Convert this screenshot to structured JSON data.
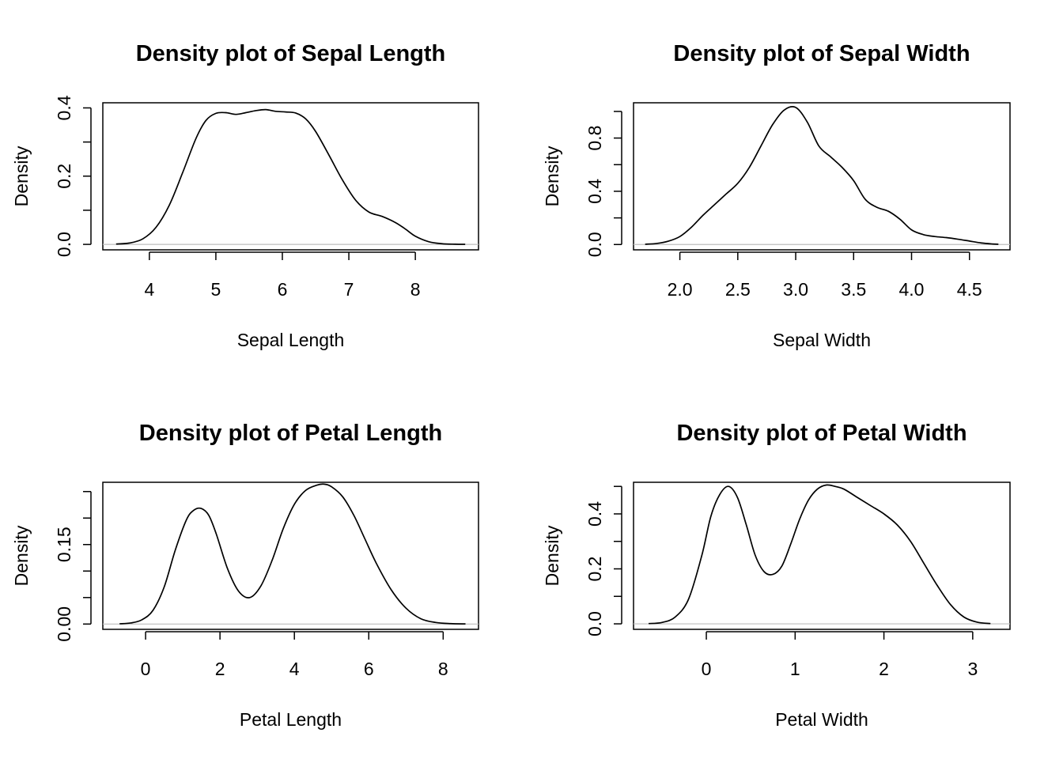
{
  "chart_data": [
    {
      "type": "line",
      "title": "Density plot of Sepal Length",
      "xlabel": "Sepal Length",
      "ylabel": "Density",
      "xlim": [
        3.3,
        8.95
      ],
      "ylim": [
        -0.016,
        0.415
      ],
      "x_ticks": [
        4,
        5,
        6,
        7,
        8
      ],
      "x_tick_labels": [
        "4",
        "5",
        "6",
        "7",
        "8"
      ],
      "y_ticks": [
        0.0,
        0.1,
        0.2,
        0.3,
        0.4
      ],
      "y_tick_labels": [
        "0.0",
        "",
        "0.2",
        "",
        "0.4"
      ],
      "zero_line": true,
      "series": [
        {
          "x": [
            3.5,
            3.7,
            3.9,
            4.1,
            4.3,
            4.5,
            4.7,
            4.85,
            5.0,
            5.15,
            5.3,
            5.45,
            5.6,
            5.75,
            5.9,
            6.05,
            6.2,
            6.35,
            6.5,
            6.7,
            6.9,
            7.1,
            7.3,
            7.5,
            7.7,
            7.85,
            8.0,
            8.2,
            8.4,
            8.6,
            8.75
          ],
          "y": [
            0.001,
            0.004,
            0.016,
            0.05,
            0.115,
            0.21,
            0.31,
            0.363,
            0.384,
            0.386,
            0.381,
            0.386,
            0.392,
            0.395,
            0.39,
            0.388,
            0.385,
            0.368,
            0.331,
            0.262,
            0.19,
            0.13,
            0.095,
            0.082,
            0.064,
            0.045,
            0.024,
            0.008,
            0.002,
            0.0005,
            0.0002
          ]
        }
      ]
    },
    {
      "type": "line",
      "title": "Density plot of Sepal Width",
      "xlabel": "Sepal Width",
      "ylabel": "Density",
      "xlim": [
        1.6,
        4.85
      ],
      "ylim": [
        -0.04,
        1.065
      ],
      "x_ticks": [
        2.0,
        2.5,
        3.0,
        3.5,
        4.0,
        4.5
      ],
      "x_tick_labels": [
        "2.0",
        "2.5",
        "3.0",
        "3.5",
        "4.0",
        "4.5"
      ],
      "y_ticks": [
        0.0,
        0.2,
        0.4,
        0.6,
        0.8,
        1.0
      ],
      "y_tick_labels": [
        "0.0",
        "",
        "0.4",
        "",
        "0.8",
        ""
      ],
      "zero_line": true,
      "series": [
        {
          "x": [
            1.7,
            1.8,
            1.9,
            2.0,
            2.1,
            2.2,
            2.3,
            2.4,
            2.5,
            2.6,
            2.7,
            2.8,
            2.9,
            3.0,
            3.1,
            3.2,
            3.3,
            3.4,
            3.5,
            3.6,
            3.7,
            3.8,
            3.9,
            4.0,
            4.1,
            4.2,
            4.3,
            4.4,
            4.5,
            4.6,
            4.7,
            4.75
          ],
          "y": [
            0.002,
            0.008,
            0.025,
            0.06,
            0.13,
            0.22,
            0.3,
            0.38,
            0.46,
            0.58,
            0.74,
            0.9,
            1.01,
            1.03,
            0.92,
            0.74,
            0.66,
            0.58,
            0.48,
            0.34,
            0.28,
            0.25,
            0.19,
            0.11,
            0.075,
            0.06,
            0.052,
            0.04,
            0.026,
            0.012,
            0.004,
            0.002
          ]
        }
      ]
    },
    {
      "type": "line",
      "title": "Density plot of Petal Length",
      "xlabel": "Petal Length",
      "ylabel": "Density",
      "xlim": [
        -1.15,
        8.95
      ],
      "ylim": [
        -0.01,
        0.2675
      ],
      "x_ticks": [
        0,
        2,
        4,
        6,
        8
      ],
      "x_tick_labels": [
        "0",
        "2",
        "4",
        "6",
        "8"
      ],
      "y_ticks": [
        0.0,
        0.05,
        0.1,
        0.15,
        0.2,
        0.25
      ],
      "y_tick_labels": [
        "0.00",
        "",
        "",
        "0.15",
        "",
        ""
      ],
      "zero_line": true,
      "series": [
        {
          "x": [
            -0.7,
            -0.4,
            -0.1,
            0.2,
            0.5,
            0.8,
            1.1,
            1.3,
            1.5,
            1.7,
            1.9,
            2.2,
            2.5,
            2.8,
            3.1,
            3.4,
            3.7,
            4.0,
            4.3,
            4.6,
            4.8,
            5.0,
            5.3,
            5.6,
            5.9,
            6.2,
            6.6,
            7.0,
            7.4,
            7.8,
            8.2,
            8.6
          ],
          "y": [
            0.0005,
            0.002,
            0.008,
            0.026,
            0.07,
            0.14,
            0.197,
            0.215,
            0.218,
            0.205,
            0.17,
            0.105,
            0.062,
            0.05,
            0.072,
            0.12,
            0.18,
            0.226,
            0.252,
            0.262,
            0.264,
            0.259,
            0.24,
            0.205,
            0.16,
            0.115,
            0.065,
            0.03,
            0.01,
            0.003,
            0.0008,
            0.0002
          ]
        }
      ]
    },
    {
      "type": "line",
      "title": "Density plot of Petal Width",
      "xlabel": "Petal Width",
      "ylabel": "Density",
      "xlim": [
        -0.82,
        3.42
      ],
      "ylim": [
        -0.02,
        0.515
      ],
      "x_ticks": [
        0,
        1,
        2,
        3
      ],
      "x_tick_labels": [
        "0",
        "1",
        "2",
        "3"
      ],
      "y_ticks": [
        0.0,
        0.1,
        0.2,
        0.3,
        0.4,
        0.5
      ],
      "y_tick_labels": [
        "0.0",
        "",
        "0.2",
        "",
        "0.4",
        ""
      ],
      "zero_line": true,
      "series": [
        {
          "x": [
            -0.65,
            -0.5,
            -0.35,
            -0.2,
            -0.05,
            0.05,
            0.15,
            0.25,
            0.35,
            0.45,
            0.55,
            0.65,
            0.75,
            0.85,
            0.95,
            1.05,
            1.15,
            1.25,
            1.35,
            1.45,
            1.55,
            1.7,
            1.85,
            2.0,
            2.15,
            2.3,
            2.45,
            2.6,
            2.75,
            2.9,
            3.05,
            3.2
          ],
          "y": [
            0.001,
            0.005,
            0.025,
            0.09,
            0.25,
            0.39,
            0.47,
            0.5,
            0.46,
            0.36,
            0.25,
            0.19,
            0.18,
            0.21,
            0.29,
            0.38,
            0.45,
            0.49,
            0.505,
            0.5,
            0.49,
            0.46,
            0.43,
            0.4,
            0.36,
            0.3,
            0.22,
            0.14,
            0.07,
            0.025,
            0.006,
            0.001
          ]
        }
      ]
    }
  ]
}
